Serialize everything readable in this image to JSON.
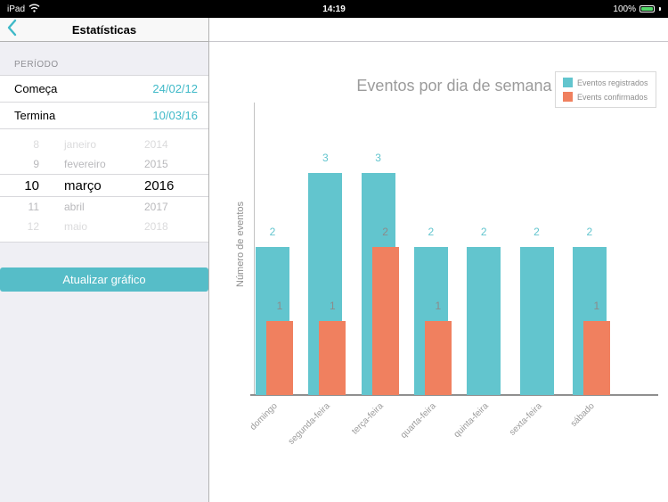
{
  "status_bar": {
    "device": "iPad",
    "time": "14:19",
    "battery": "100%"
  },
  "colors": {
    "accent_teal": "#3fb9c8",
    "button_teal": "#56bdc8",
    "battery_green": "#53d769"
  },
  "sidebar": {
    "title": "Estatísticas",
    "section_label": "PERÍODO",
    "fields": [
      {
        "label": "Começa",
        "value": "24/02/12"
      },
      {
        "label": "Termina",
        "value": "10/03/16"
      }
    ],
    "picker": {
      "rows": [
        {
          "day": "8",
          "month": "janeiro",
          "year": "2014",
          "selected": false
        },
        {
          "day": "9",
          "month": "fevereiro",
          "year": "2015",
          "selected": false
        },
        {
          "day": "10",
          "month": "março",
          "year": "2016",
          "selected": true
        },
        {
          "day": "11",
          "month": "abril",
          "year": "2017",
          "selected": false
        },
        {
          "day": "12",
          "month": "maio",
          "year": "2018",
          "selected": false
        }
      ]
    },
    "button_label": "Atualizar gráfico"
  },
  "chart_data": {
    "type": "bar",
    "title": "Eventos por dia de semana",
    "ylabel": "Número de eventos",
    "xlabel": "",
    "categories": [
      "domingo",
      "segunda-feira",
      "terça-feira",
      "quarta-feira",
      "quinta-feira",
      "sexta-feira",
      "sábado"
    ],
    "series": [
      {
        "name": "Eventos registrados",
        "color": "#62c5ce",
        "values": [
          2,
          3,
          3,
          2,
          2,
          2,
          2
        ]
      },
      {
        "name": "Events confirmados",
        "color": "#f0805f",
        "values": [
          1,
          1,
          2,
          1,
          0,
          0,
          1
        ]
      }
    ],
    "ylim": [
      0,
      3.5
    ],
    "grid": false,
    "legend_position": "top-right",
    "value_labels": true
  }
}
